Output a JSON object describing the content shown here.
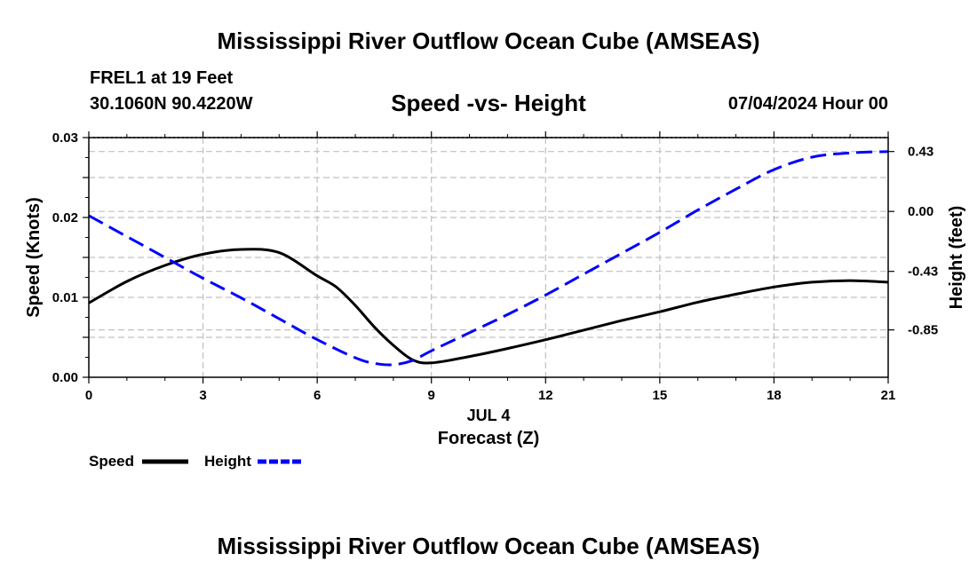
{
  "title": "Mississippi River Outflow Ocean Cube (AMSEAS)",
  "footer_title": "Mississippi River Outflow Ocean Cube (AMSEAS)",
  "station": "FREL1 at 19 Feet",
  "coords": "30.1060N  90.4220W",
  "datetime": "07/04/2024 Hour 00",
  "chart_data": {
    "type": "line",
    "title": "Speed -vs- Height",
    "xlabel": "Forecast (Z)",
    "xsublabel": "JUL 4",
    "ylabel": "Speed (Knots)",
    "y2label": "Height (feet)",
    "xlim": [
      0,
      21
    ],
    "ylim": [
      0,
      0.03
    ],
    "y2lim": [
      -1.19,
      0.53
    ],
    "xticks": [
      0,
      3,
      6,
      9,
      12,
      15,
      18,
      21
    ],
    "yticks": [
      0,
      0.005,
      0.01,
      0.015,
      0.02,
      0.025,
      0.03
    ],
    "yticklabels": [
      "0.00",
      "",
      "0.01",
      "",
      "0.02",
      "",
      "0.03"
    ],
    "y2ticks": [
      0.43,
      0.0,
      -0.43,
      -0.85
    ],
    "y2ticklabels": [
      "0.43",
      "0.00",
      "-0.43",
      "-0.85"
    ],
    "grid": true,
    "legend": "bottom-left",
    "series": [
      {
        "name": "Speed",
        "axis": "left",
        "color": "#000000",
        "style": "solid",
        "x": [
          0,
          1,
          2,
          3,
          4,
          5,
          6,
          6.5,
          7,
          7.5,
          8,
          8.5,
          9,
          10,
          11,
          12,
          13,
          14,
          15,
          16,
          17,
          18,
          19,
          20,
          21
        ],
        "values": [
          0.0093,
          0.012,
          0.014,
          0.0154,
          0.016,
          0.0156,
          0.0127,
          0.0113,
          0.009,
          0.0063,
          0.004,
          0.0022,
          0.0018,
          0.0026,
          0.0036,
          0.0047,
          0.0059,
          0.0071,
          0.0082,
          0.0094,
          0.0104,
          0.0113,
          0.0119,
          0.0121,
          0.0119
        ]
      },
      {
        "name": "Height",
        "axis": "right",
        "color": "#0000ff",
        "style": "dashed",
        "x": [
          0,
          1,
          2,
          3,
          4,
          5,
          6,
          7,
          7.5,
          8,
          8.5,
          9,
          10,
          11,
          12,
          13,
          14,
          15,
          16,
          17,
          18,
          19,
          20,
          21
        ],
        "values": [
          -0.03,
          -0.18,
          -0.33,
          -0.48,
          -0.62,
          -0.77,
          -0.92,
          -1.05,
          -1.09,
          -1.1,
          -1.07,
          -1.0,
          -0.87,
          -0.74,
          -0.6,
          -0.45,
          -0.3,
          -0.15,
          0.01,
          0.16,
          0.3,
          0.39,
          0.42,
          0.43
        ]
      }
    ]
  }
}
